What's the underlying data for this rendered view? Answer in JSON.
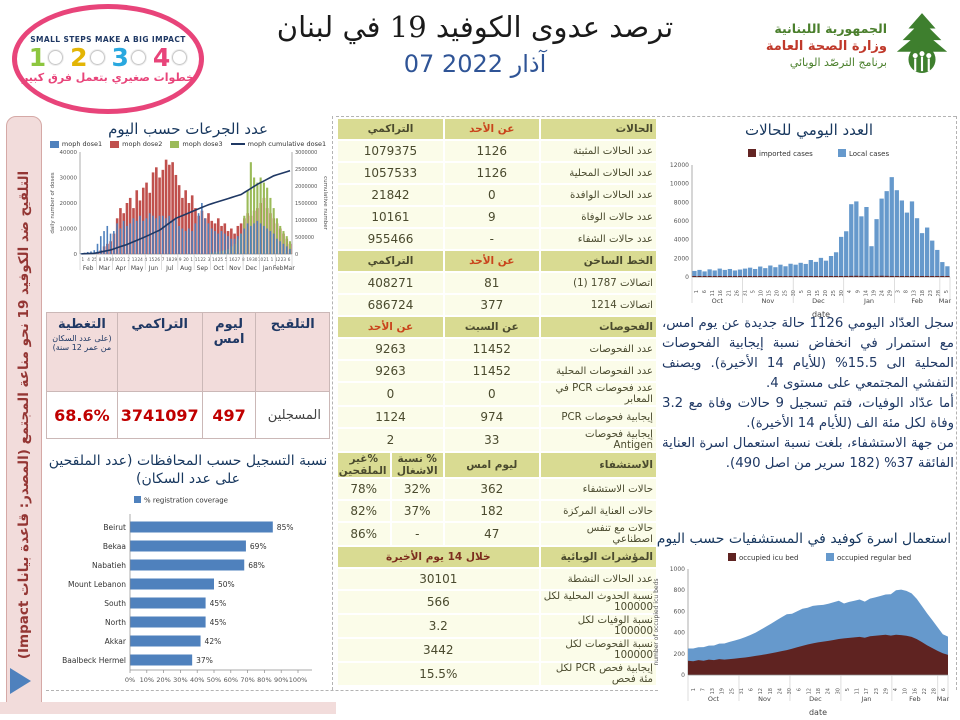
{
  "header": {
    "impact_logo": {
      "top_text": "SMALL STEPS MAKE A BIG IMPACT",
      "numbers": [
        "1",
        "2",
        "3",
        "4"
      ],
      "number_colors": [
        "#8dc63f",
        "#e3b505",
        "#29a8df",
        "#e8447a"
      ],
      "arabic_text": "خطوات صغيري بتعمل فرق كبير"
    },
    "title": "ترصد عدوى الكوفيد 19 في لبنان",
    "date": "07 آذار 2022",
    "moph_logo": {
      "line1": "الجمهورية اللبنانية",
      "line2": "وزارة الصحة العامة",
      "line3": "برنامج الترصّد الوبائي"
    }
  },
  "sidebar": {
    "text": "التلقيح ضد الكوفيد 19 نحو مناعة المجتمع (المصدر: قاعدة بيانات Impact)"
  },
  "vaccination_table": {
    "headers": [
      "التلقيح",
      "ليوم امس",
      "التراكمي",
      "التغطية"
    ],
    "coverage_note": "(على عدد السكان من عمر 12 سنة)",
    "row_label": "المسجلين",
    "yesterday": "497",
    "cumulative": "3741097",
    "coverage": "68.6%"
  },
  "middle_table": {
    "rows": [
      {
        "h": true,
        "cells": [
          "الحالات",
          "عن الأحد",
          "التراكمي"
        ],
        "accent": [
          1
        ]
      },
      {
        "cells": [
          "عدد الحالات المثبتة",
          "1126",
          "1079375"
        ]
      },
      {
        "cells": [
          "عدد الحالات المحلية",
          "1126",
          "1057533"
        ]
      },
      {
        "cells": [
          "عدد الحالات الوافدة",
          "0",
          "21842"
        ]
      },
      {
        "cells": [
          "عدد حالات الوفاة",
          "9",
          "10161"
        ]
      },
      {
        "cells": [
          "عدد حالات الشفاء",
          "-",
          "955466"
        ]
      },
      {
        "h": true,
        "cells": [
          "الخط الساخن",
          "عن الأحد",
          "التراكمي"
        ],
        "accent": [
          1
        ]
      },
      {
        "cells": [
          "اتصالات 1787 (1)",
          "81",
          "408271"
        ]
      },
      {
        "cells": [
          "اتصالات 1214",
          "377",
          "686724"
        ]
      },
      {
        "h": true,
        "cells": [
          "الفحوصات",
          "عن السبت",
          "عن الأحد"
        ],
        "accent": [
          2
        ]
      },
      {
        "cells": [
          "عدد الفحوصات",
          "11452",
          "9263"
        ]
      },
      {
        "cells": [
          "عدد الفحوصات المحلية",
          "11452",
          "9263"
        ]
      },
      {
        "cells": [
          "عدد فحوصات PCR في المعابر",
          "0",
          "0"
        ]
      },
      {
        "cells": [
          "إيجابية فحوصات PCR",
          "974",
          "1124"
        ]
      },
      {
        "cells": [
          "إيجابية فحوصات Antigen",
          "33",
          "2"
        ]
      },
      {
        "h": true,
        "cells": [
          "الاستشفاء",
          "ليوم امس",
          "% نسبة الاشغال",
          "%غير الملقحين"
        ]
      },
      {
        "cells": [
          "حالات الاستشفاء",
          "362",
          "32%",
          "78%"
        ]
      },
      {
        "cells": [
          "حالات العناية المركزة",
          "182",
          "37%",
          "82%"
        ]
      },
      {
        "cells": [
          "حالات مع تنفس اصطناعي",
          "47",
          "-",
          "86%"
        ]
      },
      {
        "h": true,
        "cells": [
          "المؤشرات الوبائية",
          "خلال 14 يوم الأخيرة"
        ],
        "maroon": [
          1
        ]
      },
      {
        "cells": [
          "عدد الحالات النشطة",
          "30101"
        ]
      },
      {
        "cells": [
          "نسبة الحدوث المحلية لكل 100000",
          "566"
        ]
      },
      {
        "cells": [
          "نسبة الوفيات لكل 100000",
          "3.2"
        ]
      },
      {
        "cells": [
          "نسبة الفحوصات لكل 100000",
          "3442"
        ]
      },
      {
        "cells": [
          "إيجابية فحص PCR لكل مئة فحص",
          "15.5%"
        ]
      }
    ]
  },
  "analysis": {
    "p1": "سجل العدّاد اليومي 1126 حالة جديدة عن يوم امس، مع استمرار في انخفاض نسبة إيجابية الفحوصات المحلية الى 15.5% (للأيام 14 الأخيرة). ويصنف التفشي المجتمعي على مستوى 4.",
    "p2": "أما عدّاد الوفيات، فتم تسجيل 9 حالات وفاة مع 3.2 وفاة لكل مئة الف (للأيام 14 الأخيرة).",
    "p3": "من جهة الاستشفاء، بلغت نسبة استعمال اسرة العناية الفائقة 37% (182 سرير من اصل 490)."
  },
  "chart_data": [
    {
      "id": "doses",
      "type": "bar",
      "title": "عدد الجرعات حسب اليوم",
      "legend": [
        "moph dose1",
        "moph dose2",
        "moph dose3",
        "moph cumulative dose1"
      ],
      "colors": {
        "dose1": "#4f81bd",
        "dose2": "#c0504d",
        "dose3": "#9bbb59",
        "cumulative": "#1f3864"
      },
      "ylabel_left": "daily number of doses",
      "ylabel_right": "cumulative number",
      "ylim_left": [
        0,
        40000
      ],
      "yticks_left": [
        "0",
        "10000",
        "20000",
        "30000",
        "40000"
      ],
      "ylim_right": [
        0,
        3000000
      ],
      "yticks_right": [
        "0",
        "500000",
        "1000000",
        "1500000",
        "2000000",
        "2500000",
        "3000000"
      ],
      "months": [
        "Feb",
        "Mar",
        "Apr",
        "May",
        "Jun",
        "Jul",
        "Aug",
        "Sep",
        "Oct",
        "Nov",
        "Dec",
        "Jan",
        "FebMar"
      ],
      "day_ticks": [
        "1",
        "4",
        "25",
        "8",
        "19",
        "30",
        "10",
        "21",
        "2",
        "13",
        "24",
        "4",
        "15",
        "26",
        "7",
        "18",
        "29",
        "9",
        "20",
        "1",
        "11",
        "22",
        "3",
        "14",
        "25",
        "5",
        "16",
        "27",
        "8",
        "19",
        "30",
        "10",
        "21",
        "1",
        "12",
        "23",
        "6"
      ],
      "series": {
        "dose1": [
          300,
          500,
          800,
          1000,
          1500,
          4000,
          7000,
          9000,
          11000,
          8000,
          9000,
          12000,
          10000,
          13000,
          11000,
          12000,
          14000,
          13000,
          15000,
          13000,
          14000,
          16000,
          15000,
          14000,
          15000,
          15000,
          14000,
          15000,
          13000,
          14000,
          11000,
          10000,
          9000,
          10000,
          9000,
          12000,
          16000,
          20000,
          14000,
          12000,
          10000,
          9000,
          8000,
          9000,
          8000,
          7000,
          6000,
          6000,
          7000,
          8000,
          10000,
          12000,
          11000,
          12000,
          13000,
          12000,
          11000,
          10000,
          9000,
          8000,
          6000,
          5000,
          4000,
          3000,
          2000
        ],
        "dose2": [
          0,
          100,
          200,
          300,
          400,
          800,
          1500,
          3000,
          4000,
          5000,
          8000,
          14000,
          18000,
          16000,
          20000,
          22000,
          18000,
          25000,
          21000,
          26000,
          28000,
          24000,
          32000,
          34000,
          30000,
          33000,
          37000,
          35000,
          36000,
          31000,
          27000,
          22000,
          25000,
          20000,
          23000,
          18000,
          15000,
          17000,
          14000,
          16000,
          13000,
          12000,
          14000,
          11000,
          12000,
          9000,
          10000,
          8000,
          11000,
          12000,
          14000,
          16000,
          15000,
          17000,
          18000,
          20000,
          22000,
          18000,
          16000,
          14000,
          12000,
          10000,
          8000,
          6000,
          4000
        ],
        "dose3": [
          0,
          0,
          0,
          0,
          0,
          0,
          0,
          0,
          0,
          0,
          0,
          0,
          0,
          0,
          0,
          0,
          0,
          0,
          0,
          0,
          0,
          0,
          0,
          0,
          0,
          0,
          0,
          0,
          0,
          0,
          0,
          0,
          0,
          0,
          0,
          0,
          0,
          0,
          0,
          0,
          500,
          800,
          1000,
          1200,
          1500,
          2000,
          3000,
          4000,
          6000,
          8000,
          15000,
          25000,
          36000,
          30000,
          28000,
          30000,
          28000,
          26000,
          22000,
          18000,
          14000,
          11000,
          9000,
          7000,
          5000
        ],
        "cumulative": [
          4000,
          8000,
          12000,
          16000,
          20000,
          40000,
          60000,
          80000,
          100000,
          120000,
          152000,
          184000,
          216000,
          248000,
          280000,
          320000,
          360000,
          400000,
          440000,
          480000,
          524000,
          568000,
          612000,
          656000,
          700000,
          770000,
          840000,
          910000,
          980000,
          1050000,
          1090000,
          1130000,
          1170000,
          1210000,
          1250000,
          1290000,
          1330000,
          1370000,
          1410000,
          1450000,
          1480000,
          1510000,
          1540000,
          1570000,
          1600000,
          1630000,
          1660000,
          1690000,
          1720000,
          1750000,
          1810000,
          1870000,
          1930000,
          1990000,
          2050000,
          2100000,
          2150000,
          2200000,
          2250000,
          2300000,
          2330000,
          2360000,
          2390000,
          2420000,
          2450000
        ]
      }
    },
    {
      "id": "daily_cases",
      "type": "bar",
      "title": "العدد اليومي للحالات",
      "legend": [
        "imported cases",
        "Local cases"
      ],
      "colors": {
        "imported": "#632423",
        "local": "#6699cc"
      },
      "ylim": [
        0,
        12000
      ],
      "yticks": [
        "0",
        "2000",
        "4000",
        "6000",
        "8000",
        "10000",
        "12000"
      ],
      "xlabel": "date",
      "months": [
        "Oct",
        "Nov",
        "Dec",
        "Jan",
        "Feb",
        "Mar"
      ],
      "month_sizes": [
        10,
        10,
        10,
        10,
        9,
        2
      ],
      "day_ticks": [
        "1",
        "6",
        "11",
        "16",
        "21",
        "26",
        "31",
        "5",
        "10",
        "15",
        "20",
        "25",
        "30",
        "5",
        "10",
        "15",
        "20",
        "25",
        "30",
        "4",
        "9",
        "14",
        "19",
        "24",
        "29",
        "3",
        "8",
        "13",
        "18",
        "23",
        "28",
        "5"
      ],
      "series": {
        "local": [
          650,
          760,
          600,
          820,
          700,
          900,
          760,
          860,
          700,
          800,
          900,
          1000,
          860,
          1120,
          950,
          1230,
          1050,
          1320,
          1150,
          1420,
          1320,
          1520,
          1400,
          1820,
          1620,
          2050,
          1750,
          2250,
          2650,
          4300,
          4900,
          7800,
          8100,
          6500,
          7500,
          3300,
          6200,
          8400,
          9200,
          10700,
          9300,
          8200,
          6900,
          8100,
          6300,
          4700,
          5300,
          3900,
          2900,
          1600,
          1150
        ],
        "imported": [
          60,
          50,
          70,
          55,
          65,
          50,
          60,
          70,
          55,
          60,
          65,
          60,
          70,
          65,
          60,
          70,
          65,
          60,
          70,
          65,
          70,
          65,
          75,
          70,
          80,
          75,
          70,
          80,
          90,
          100,
          110,
          120,
          130,
          120,
          110,
          100,
          120,
          130,
          120,
          110,
          100,
          95,
          90,
          85,
          80,
          75,
          70,
          65,
          60,
          55,
          50
        ]
      }
    },
    {
      "id": "beds",
      "type": "stacked-area",
      "title": "استعمال اسرة كوفيد في المستشفيات حسب اليوم",
      "legend": [
        "occupied icu bed",
        "occupied regular bed"
      ],
      "colors": {
        "icu": "#5f2321",
        "regular": "#6699cc"
      },
      "ylim": [
        0,
        1000
      ],
      "yticks": [
        "0",
        "200",
        "400",
        "600",
        "800",
        "1000"
      ],
      "ylabel": "number of occupied icu beds",
      "xlabel": "date",
      "months": [
        "Oct",
        "Nov",
        "Dec",
        "Jan",
        "Feb",
        "Mar"
      ],
      "month_sizes": [
        10,
        10,
        10,
        10,
        9,
        2
      ],
      "day_ticks": [
        "1",
        "7",
        "13",
        "19",
        "25",
        "31",
        "6",
        "12",
        "18",
        "24",
        "30",
        "6",
        "12",
        "18",
        "24",
        "30",
        "5",
        "11",
        "17",
        "23",
        "29",
        "4",
        "10",
        "16",
        "22",
        "28",
        "6"
      ],
      "series": {
        "icu": [
          135,
          130,
          140,
          135,
          145,
          140,
          150,
          145,
          150,
          155,
          160,
          165,
          172,
          180,
          188,
          196,
          205,
          215,
          225,
          235,
          248,
          262,
          275,
          288,
          298,
          308,
          315,
          322,
          330,
          340,
          345,
          350,
          355,
          360,
          352,
          365,
          370,
          375,
          380,
          372,
          380,
          376,
          370,
          360,
          338,
          310,
          280,
          254,
          228,
          205,
          190
        ],
        "regular": [
          115,
          120,
          122,
          128,
          132,
          138,
          146,
          152,
          162,
          170,
          180,
          192,
          205,
          220,
          240,
          260,
          280,
          300,
          320,
          338,
          330,
          340,
          350,
          346,
          354,
          350,
          346,
          350,
          356,
          360,
          330,
          340,
          346,
          352,
          340,
          356,
          362,
          370,
          380,
          390,
          420,
          430,
          424,
          410,
          380,
          340,
          300,
          262,
          222,
          180,
          172
        ]
      }
    },
    {
      "id": "registration",
      "type": "hbar",
      "title": "نسبة التسجيل حسب المحافظات (عدد الملقحين على عدد السكان)",
      "legend": [
        "% registration coverage"
      ],
      "color": "#4f81bd",
      "categories": [
        "Beirut",
        "Bekaa",
        "Nabatieh",
        "Mount Lebanon",
        "South",
        "North",
        "Akkar",
        "Baalbeck Hermel"
      ],
      "values": [
        85,
        69,
        68,
        50,
        45,
        45,
        42,
        37
      ],
      "value_labels": [
        "85%",
        "69%",
        "68%",
        "50%",
        "45%",
        "45%",
        "42%",
        "37%"
      ],
      "xlim": [
        0,
        100
      ],
      "xticks": [
        "0%",
        "10%",
        "20%",
        "30%",
        "40%",
        "50%",
        "60%",
        "70%",
        "80%",
        "90%",
        "100%"
      ]
    }
  ]
}
